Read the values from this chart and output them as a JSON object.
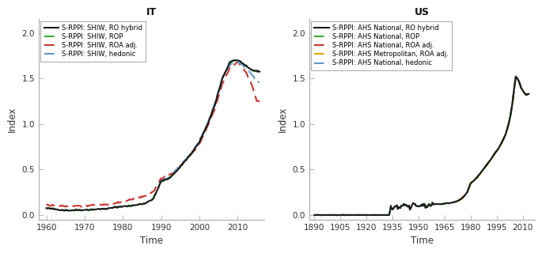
{
  "IT": {
    "title": "IT",
    "xlabel": "Time",
    "ylabel": "Index",
    "xlim": [
      1958,
      2017
    ],
    "ylim": [
      -0.05,
      2.15
    ],
    "yticks": [
      0.0,
      0.5,
      1.0,
      1.5,
      2.0
    ],
    "ytick_labels": [
      "0.0",
      "0.5",
      "1.0",
      "1.5",
      "2.0"
    ],
    "xticks": [
      1960,
      1970,
      1980,
      1990,
      2000,
      2010
    ],
    "legend": [
      {
        "label": "S-RPPl: SHIW, RO hybrid",
        "color": "#1a1a1a",
        "linestyle": "solid",
        "linewidth": 1.5
      },
      {
        "label": "S-RPPl: SHIW, ROP",
        "color": "#33aa33",
        "linestyle": "dashed",
        "linewidth": 1.5
      },
      {
        "label": "S-RPPl: SHIW, ROA adj.",
        "color": "#cc3333",
        "linestyle": "dashed",
        "linewidth": 1.5
      },
      {
        "label": "S-RPPl: SHIW, hedonic",
        "color": "#6699cc",
        "linestyle": "dashed",
        "linewidth": 1.5
      }
    ]
  },
  "US": {
    "title": "US",
    "xlabel": "Time",
    "ylabel": "Index",
    "xlim": [
      1887,
      2017
    ],
    "ylim": [
      -0.05,
      2.15
    ],
    "yticks": [
      0.0,
      0.5,
      1.0,
      1.5,
      2.0
    ],
    "ytick_labels": [
      "0.0",
      "0.5",
      "1.0",
      "1.5",
      "2.0"
    ],
    "xticks": [
      1890,
      1905,
      1920,
      1935,
      1950,
      1965,
      1980,
      1995,
      2010
    ],
    "legend": [
      {
        "label": "S-RPPl: AHS National, RO hybrid",
        "color": "#1a1a1a",
        "linestyle": "solid",
        "linewidth": 1.5
      },
      {
        "label": "S-RPPl: AHS National, ROP",
        "color": "#33aa33",
        "linestyle": "dashed",
        "linewidth": 1.5
      },
      {
        "label": "S-RPPl: AHS National, ROA adj.",
        "color": "#cc3333",
        "linestyle": "dashed",
        "linewidth": 1.5
      },
      {
        "label": "S-RPPl: AHS Metropolitan, ROA adj.",
        "color": "#ddaa00",
        "linestyle": "dashed",
        "linewidth": 1.5
      },
      {
        "label": "S-RPPl: AHS National, hedonic",
        "color": "#6699cc",
        "linestyle": "dashed",
        "linewidth": 1.5
      }
    ]
  }
}
